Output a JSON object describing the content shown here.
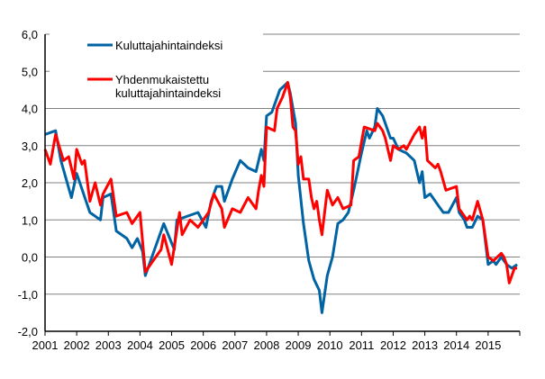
{
  "chart_data": {
    "type": "line",
    "title": "",
    "xlabel": "",
    "ylabel": "",
    "ylim": [
      -2,
      6
    ],
    "yticks": [
      "6,0",
      "5,0",
      "4,0",
      "3,0",
      "2,0",
      "1,0",
      "0,0",
      "-1,0",
      "-2,0"
    ],
    "xticks": [
      "2001",
      "2002",
      "2003",
      "2004",
      "2005",
      "2006",
      "2007",
      "2008",
      "2009",
      "2010",
      "2011",
      "2012",
      "2013",
      "2014",
      "2015"
    ],
    "xrange": [
      "2001-01",
      "2015-12"
    ],
    "grid": "horizontal",
    "legend_placement": "top-left",
    "series": [
      {
        "name": "Kuluttajahintaindeksi",
        "color": "#0063A3",
        "points": [
          [
            "2001-01",
            3.3
          ],
          [
            "2001-05",
            3.4
          ],
          [
            "2001-07",
            2.6
          ],
          [
            "2001-11",
            1.6
          ],
          [
            "2002-01",
            2.25
          ],
          [
            "2002-06",
            1.2
          ],
          [
            "2002-10",
            1.0
          ],
          [
            "2002-11",
            1.6
          ],
          [
            "2003-02",
            1.7
          ],
          [
            "2003-04",
            0.7
          ],
          [
            "2003-08",
            0.5
          ],
          [
            "2003-10",
            0.25
          ],
          [
            "2003-12",
            0.5
          ],
          [
            "2004-02",
            0.15
          ],
          [
            "2004-03",
            -0.5
          ],
          [
            "2004-07",
            0.3
          ],
          [
            "2004-10",
            0.9
          ],
          [
            "2005-02",
            0.2
          ],
          [
            "2005-03",
            1.0
          ],
          [
            "2005-07",
            1.1
          ],
          [
            "2005-11",
            1.2
          ],
          [
            "2006-02",
            0.8
          ],
          [
            "2006-04",
            1.5
          ],
          [
            "2006-06",
            1.9
          ],
          [
            "2006-08",
            1.9
          ],
          [
            "2006-09",
            1.5
          ],
          [
            "2006-12",
            2.1
          ],
          [
            "2007-03",
            2.6
          ],
          [
            "2007-06",
            2.4
          ],
          [
            "2007-09",
            2.3
          ],
          [
            "2007-11",
            2.9
          ],
          [
            "2007-12",
            2.6
          ],
          [
            "2008-01",
            3.8
          ],
          [
            "2008-03",
            3.9
          ],
          [
            "2008-06",
            4.5
          ],
          [
            "2008-09",
            4.7
          ],
          [
            "2008-10",
            4.4
          ],
          [
            "2008-12",
            3.6
          ],
          [
            "2009-01",
            2.2
          ],
          [
            "2009-03",
            0.9
          ],
          [
            "2009-05",
            -0.1
          ],
          [
            "2009-07",
            -0.6
          ],
          [
            "2009-09",
            -0.9
          ],
          [
            "2009-10",
            -1.5
          ],
          [
            "2009-12",
            -0.5
          ],
          [
            "2010-02",
            0.0
          ],
          [
            "2010-04",
            0.9
          ],
          [
            "2010-06",
            1.0
          ],
          [
            "2010-08",
            1.2
          ],
          [
            "2010-10",
            1.8
          ],
          [
            "2011-01",
            2.8
          ],
          [
            "2011-03",
            3.4
          ],
          [
            "2011-04",
            3.2
          ],
          [
            "2011-06",
            3.5
          ],
          [
            "2011-07",
            4.0
          ],
          [
            "2011-09",
            3.8
          ],
          [
            "2011-12",
            3.2
          ],
          [
            "2012-01",
            3.2
          ],
          [
            "2012-03",
            2.9
          ],
          [
            "2012-06",
            2.8
          ],
          [
            "2012-09",
            2.6
          ],
          [
            "2012-11",
            2.0
          ],
          [
            "2012-12",
            2.3
          ],
          [
            "2013-01",
            1.6
          ],
          [
            "2013-03",
            1.7
          ],
          [
            "2013-05",
            1.5
          ],
          [
            "2013-06",
            1.4
          ],
          [
            "2013-08",
            1.2
          ],
          [
            "2013-10",
            1.2
          ],
          [
            "2014-01",
            1.6
          ],
          [
            "2014-02",
            1.2
          ],
          [
            "2014-04",
            1.0
          ],
          [
            "2014-05",
            0.8
          ],
          [
            "2014-07",
            0.8
          ],
          [
            "2014-09",
            1.1
          ],
          [
            "2014-11",
            1.0
          ],
          [
            "2015-01",
            -0.2
          ],
          [
            "2015-03",
            -0.1
          ],
          [
            "2015-04",
            -0.2
          ],
          [
            "2015-06",
            0.0
          ],
          [
            "2015-08",
            -0.2
          ],
          [
            "2015-10",
            -0.3
          ],
          [
            "2015-12",
            -0.2
          ]
        ]
      },
      {
        "name": "Yhdenmukaistettu kuluttajahintaindeksi",
        "name_lines": [
          "Yhdenmukaistettu",
          "kuluttajahintaindeksi"
        ],
        "color": "#FF0000",
        "points": [
          [
            "2001-01",
            2.9
          ],
          [
            "2001-03",
            2.5
          ],
          [
            "2001-05",
            3.3
          ],
          [
            "2001-08",
            2.6
          ],
          [
            "2001-10",
            2.7
          ],
          [
            "2001-12",
            2.1
          ],
          [
            "2002-01",
            2.9
          ],
          [
            "2002-03",
            2.5
          ],
          [
            "2002-04",
            2.6
          ],
          [
            "2002-06",
            1.5
          ],
          [
            "2002-08",
            2.0
          ],
          [
            "2002-10",
            1.4
          ],
          [
            "2002-11",
            1.7
          ],
          [
            "2003-02",
            2.1
          ],
          [
            "2003-04",
            1.1
          ],
          [
            "2003-08",
            1.2
          ],
          [
            "2003-10",
            0.9
          ],
          [
            "2004-01",
            1.2
          ],
          [
            "2004-03",
            -0.4
          ],
          [
            "2004-06",
            -0.1
          ],
          [
            "2004-09",
            0.2
          ],
          [
            "2004-10",
            0.6
          ],
          [
            "2005-01",
            -0.2
          ],
          [
            "2005-04",
            1.2
          ],
          [
            "2005-05",
            0.6
          ],
          [
            "2005-08",
            1.0
          ],
          [
            "2005-11",
            0.8
          ],
          [
            "2006-03",
            1.2
          ],
          [
            "2006-05",
            1.7
          ],
          [
            "2006-08",
            1.3
          ],
          [
            "2006-09",
            0.8
          ],
          [
            "2006-12",
            1.3
          ],
          [
            "2007-03",
            1.2
          ],
          [
            "2007-06",
            1.6
          ],
          [
            "2007-09",
            1.3
          ],
          [
            "2007-10",
            1.8
          ],
          [
            "2007-11",
            2.2
          ],
          [
            "2007-12",
            1.9
          ],
          [
            "2008-01",
            3.5
          ],
          [
            "2008-04",
            3.4
          ],
          [
            "2008-05",
            4.0
          ],
          [
            "2008-07",
            4.3
          ],
          [
            "2008-09",
            4.7
          ],
          [
            "2008-10",
            4.3
          ],
          [
            "2008-11",
            3.5
          ],
          [
            "2008-12",
            3.4
          ],
          [
            "2009-01",
            2.5
          ],
          [
            "2009-02",
            2.7
          ],
          [
            "2009-03",
            2.1
          ],
          [
            "2009-05",
            2.1
          ],
          [
            "2009-06",
            1.6
          ],
          [
            "2009-07",
            1.3
          ],
          [
            "2009-08",
            1.5
          ],
          [
            "2009-09",
            1.0
          ],
          [
            "2009-10",
            0.6
          ],
          [
            "2009-12",
            1.8
          ],
          [
            "2010-02",
            1.4
          ],
          [
            "2010-04",
            1.6
          ],
          [
            "2010-06",
            1.3
          ],
          [
            "2010-09",
            1.4
          ],
          [
            "2010-10",
            2.6
          ],
          [
            "2010-12",
            2.7
          ],
          [
            "2011-01",
            3.1
          ],
          [
            "2011-02",
            3.5
          ],
          [
            "2011-06",
            3.4
          ],
          [
            "2011-07",
            3.6
          ],
          [
            "2011-09",
            3.4
          ],
          [
            "2011-10",
            3.2
          ],
          [
            "2011-12",
            2.6
          ],
          [
            "2012-01",
            3.0
          ],
          [
            "2012-03",
            2.9
          ],
          [
            "2012-05",
            3.0
          ],
          [
            "2012-06",
            2.9
          ],
          [
            "2012-09",
            3.3
          ],
          [
            "2012-11",
            3.5
          ],
          [
            "2012-12",
            3.2
          ],
          [
            "2013-01",
            3.5
          ],
          [
            "2013-02",
            2.6
          ],
          [
            "2013-05",
            2.4
          ],
          [
            "2013-06",
            2.5
          ],
          [
            "2013-07",
            2.3
          ],
          [
            "2013-09",
            1.8
          ],
          [
            "2014-01",
            1.9
          ],
          [
            "2014-02",
            1.3
          ],
          [
            "2014-05",
            1.0
          ],
          [
            "2014-06",
            1.1
          ],
          [
            "2014-07",
            1.0
          ],
          [
            "2014-09",
            1.5
          ],
          [
            "2014-11",
            1.0
          ],
          [
            "2015-01",
            0.0
          ],
          [
            "2015-03",
            -0.1
          ],
          [
            "2015-06",
            0.1
          ],
          [
            "2015-07",
            0.0
          ],
          [
            "2015-08",
            -0.2
          ],
          [
            "2015-09",
            -0.7
          ],
          [
            "2015-11",
            -0.3
          ],
          [
            "2015-12",
            -0.3
          ]
        ]
      }
    ]
  }
}
